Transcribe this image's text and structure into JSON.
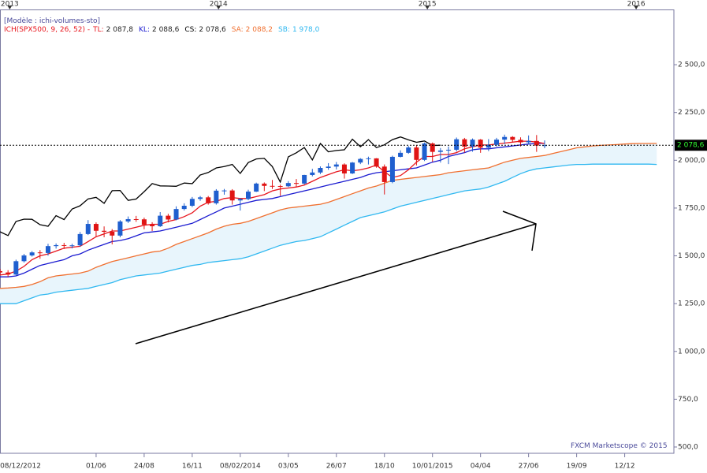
{
  "chart_data": {
    "type": "candlestick",
    "model": "[Modèle : ichi-volumes-sto]",
    "indicator": "ICH(SPX500, 9, 26, 52) -",
    "credit": "FXCM Marketscope © 2015",
    "xlim": [
      "2012-12-15",
      "2016-03-07"
    ],
    "ylim": [
      467,
      2789
    ],
    "xticks_top": [
      {
        "value": "2013-01-01",
        "label": "2013"
      },
      {
        "value": "2014-01-01",
        "label": "2014"
      },
      {
        "value": "2015-01-01",
        "label": "2015"
      },
      {
        "value": "2016-01-01",
        "label": "2016"
      }
    ],
    "xticks": [
      {
        "value": "2012-12-08",
        "label": "08/12/2012"
      },
      {
        "value": "2013-06-01",
        "label": "01/06"
      },
      {
        "value": "2013-08-24",
        "label": "24/08"
      },
      {
        "value": "2013-11-16",
        "label": "16/11"
      },
      {
        "value": "2014-02-08",
        "label": "08/02/2014"
      },
      {
        "value": "2014-05-03",
        "label": "03/05"
      },
      {
        "value": "2014-07-26",
        "label": "26/07"
      },
      {
        "value": "2014-10-18",
        "label": "18/10"
      },
      {
        "value": "2015-01-10",
        "label": "10/01/2015"
      },
      {
        "value": "2015-04-04",
        "label": "04/04"
      },
      {
        "value": "2015-06-27",
        "label": "27/06"
      },
      {
        "value": "2015-09-19",
        "label": "19/09"
      },
      {
        "value": "2015-12-12",
        "label": "12/12"
      }
    ],
    "yticks": [
      {
        "value": 500,
        "label": "500,0"
      },
      {
        "value": 750,
        "label": "750,0"
      },
      {
        "value": 1000,
        "label": "1 000,0"
      },
      {
        "value": 1250,
        "label": "1 250,0"
      },
      {
        "value": 1500,
        "label": "1 500,0"
      },
      {
        "value": 1750,
        "label": "1 750,0"
      },
      {
        "value": 2000,
        "label": "2 000,0"
      },
      {
        "value": 2250,
        "label": "2 250,0"
      },
      {
        "value": 2500,
        "label": "2 500,0"
      }
    ],
    "last_price": {
      "value": 2078.6,
      "label": "2 078,6"
    },
    "x": [
      "2012-12-15",
      "2012-12-29",
      "2013-01-12",
      "2013-01-26",
      "2013-02-09",
      "2013-02-23",
      "2013-03-09",
      "2013-03-23",
      "2013-04-06",
      "2013-04-20",
      "2013-05-04",
      "2013-05-18",
      "2013-06-01",
      "2013-06-15",
      "2013-06-29",
      "2013-07-13",
      "2013-07-27",
      "2013-08-10",
      "2013-08-24",
      "2013-09-07",
      "2013-09-21",
      "2013-10-05",
      "2013-10-19",
      "2013-11-02",
      "2013-11-16",
      "2013-11-30",
      "2013-12-14",
      "2013-12-28",
      "2014-01-11",
      "2014-01-25",
      "2014-02-08",
      "2014-02-22",
      "2014-03-08",
      "2014-03-22",
      "2014-04-05",
      "2014-04-19",
      "2014-05-03",
      "2014-05-17",
      "2014-05-31",
      "2014-06-14",
      "2014-06-28",
      "2014-07-12",
      "2014-07-26",
      "2014-08-09",
      "2014-08-23",
      "2014-09-06",
      "2014-09-20",
      "2014-10-04",
      "2014-10-18",
      "2014-11-01",
      "2014-11-15",
      "2014-11-29",
      "2014-12-13",
      "2014-12-27",
      "2015-01-10",
      "2015-01-24",
      "2015-02-07",
      "2015-02-21",
      "2015-03-07",
      "2015-03-21",
      "2015-04-04",
      "2015-04-18",
      "2015-05-02",
      "2015-05-16",
      "2015-05-30",
      "2015-06-13",
      "2015-06-27",
      "2015-07-11",
      "2015-07-25",
      "2015-08-08",
      "2015-08-22",
      "2015-09-05",
      "2015-09-19",
      "2015-10-03",
      "2015-10-17",
      "2015-10-31",
      "2015-11-14",
      "2015-11-28",
      "2015-12-12",
      "2015-12-26",
      "2016-01-09",
      "2016-01-23",
      "2016-02-06"
    ],
    "candles": {
      "up_color": "#1f5fcf",
      "down_color": "#e01414",
      "open": [
        1420,
        1413,
        1402,
        1472,
        1502,
        1518,
        1515,
        1551,
        1556,
        1553,
        1555,
        1614,
        1667,
        1631,
        1626,
        1606,
        1680,
        1692,
        1691,
        1663,
        1655,
        1710,
        1690,
        1745,
        1762,
        1798,
        1806,
        1775,
        1841,
        1842,
        1790,
        1797,
        1836,
        1878,
        1866,
        1865,
        1864,
        1881,
        1878,
        1923,
        1936,
        1960,
        1967,
        1978,
        1931,
        1988,
        2007,
        2010,
        1967,
        1886,
        2018,
        2039,
        2067,
        2002,
        2088,
        2044,
        2051,
        2055,
        2110,
        2071,
        2108,
        2066,
        2081,
        2108,
        2122,
        2107,
        2094,
        2101,
        2077,
        null,
        null,
        null,
        null,
        null,
        null,
        null,
        null,
        null,
        null,
        null,
        null,
        null,
        null
      ],
      "high": [
        1432,
        1425,
        1480,
        1510,
        1525,
        1530,
        1563,
        1565,
        1568,
        1563,
        1625,
        1687,
        1675,
        1654,
        1640,
        1687,
        1706,
        1709,
        1700,
        1676,
        1729,
        1720,
        1759,
        1775,
        1808,
        1813,
        1813,
        1849,
        1850,
        1849,
        1803,
        1846,
        1883,
        1884,
        1897,
        1873,
        1891,
        1902,
        1924,
        1955,
        1968,
        1985,
        1991,
        1984,
        1991,
        2011,
        2019,
        2011,
        1978,
        2024,
        2052,
        2075,
        2079,
        2093,
        2093,
        2064,
        2072,
        2119,
        2117,
        2114,
        2111,
        2111,
        2117,
        2134,
        2126,
        2120,
        2130,
        2132,
        2104,
        null,
        null,
        null,
        null,
        null,
        null,
        null,
        null,
        null,
        null,
        null,
        null,
        null,
        null
      ],
      "low": [
        1398,
        1390,
        1398,
        1465,
        1496,
        1485,
        1501,
        1538,
        1536,
        1539,
        1547,
        1609,
        1598,
        1597,
        1560,
        1597,
        1672,
        1678,
        1639,
        1630,
        1651,
        1675,
        1686,
        1737,
        1755,
        1788,
        1768,
        1768,
        1820,
        1768,
        1737,
        1791,
        1834,
        1839,
        1850,
        1814,
        1860,
        1862,
        1873,
        1916,
        1928,
        1950,
        1952,
        1904,
        1928,
        1980,
        1978,
        1961,
        1821,
        1880,
        2015,
        2034,
        1973,
        1996,
        1992,
        1988,
        1980,
        2046,
        2040,
        2045,
        2039,
        2048,
        2072,
        2085,
        2093,
        2072,
        2083,
        2044,
        2063,
        null,
        null,
        null,
        null,
        null,
        null,
        null,
        null,
        null,
        null,
        null,
        null,
        null,
        null
      ],
      "close": [
        1413,
        1402,
        1472,
        1502,
        1518,
        1515,
        1551,
        1556,
        1553,
        1555,
        1614,
        1667,
        1631,
        1626,
        1606,
        1680,
        1692,
        1691,
        1663,
        1655,
        1710,
        1690,
        1745,
        1762,
        1798,
        1806,
        1775,
        1841,
        1842,
        1790,
        1797,
        1836,
        1878,
        1866,
        1865,
        1864,
        1881,
        1878,
        1923,
        1936,
        1960,
        1967,
        1978,
        1931,
        1988,
        2007,
        2010,
        1967,
        1886,
        2018,
        2039,
        2067,
        2002,
        2088,
        2044,
        2051,
        2055,
        2110,
        2071,
        2108,
        2066,
        2081,
        2108,
        2122,
        2107,
        2094,
        2101,
        2077,
        2078.6,
        null,
        null,
        null,
        null,
        null,
        null,
        null,
        null,
        null,
        null,
        null,
        null,
        null,
        null
      ]
    },
    "series": [
      {
        "name": "TL:",
        "legend_value": "2 087,8",
        "color": "#e8141c",
        "values": [
          1400,
          1405,
          1420,
          1445,
          1480,
          1500,
          1510,
          1525,
          1540,
          1545,
          1550,
          1575,
          1600,
          1615,
          1630,
          1630,
          1640,
          1650,
          1660,
          1665,
          1665,
          1680,
          1690,
          1705,
          1725,
          1760,
          1780,
          1785,
          1800,
          1805,
          1800,
          1800,
          1810,
          1820,
          1840,
          1850,
          1855,
          1860,
          1870,
          1890,
          1910,
          1925,
          1940,
          1950,
          1945,
          1950,
          1960,
          1975,
          1940,
          1910,
          1920,
          1950,
          1990,
          2020,
          2020,
          2030,
          2030,
          2040,
          2060,
          2070,
          2080,
          2080,
          2085,
          2090,
          2095,
          2100,
          2100,
          2095,
          2087.8,
          null,
          null,
          null,
          null,
          null,
          null,
          null,
          null,
          null,
          null,
          null,
          null,
          null,
          null
        ]
      },
      {
        "name": "KL:",
        "legend_value": "2 088,6",
        "color": "#1a1ad0",
        "values": [
          1390,
          1390,
          1395,
          1410,
          1430,
          1450,
          1460,
          1470,
          1480,
          1500,
          1510,
          1530,
          1545,
          1560,
          1575,
          1580,
          1590,
          1605,
          1620,
          1625,
          1630,
          1640,
          1650,
          1660,
          1670,
          1690,
          1710,
          1730,
          1750,
          1760,
          1770,
          1780,
          1790,
          1795,
          1800,
          1810,
          1820,
          1830,
          1840,
          1850,
          1860,
          1870,
          1880,
          1890,
          1900,
          1910,
          1925,
          1935,
          1940,
          1945,
          1950,
          1955,
          1960,
          1975,
          1990,
          2000,
          2020,
          2030,
          2040,
          2055,
          2060,
          2060,
          2065,
          2070,
          2075,
          2080,
          2085,
          2088,
          2088.6,
          null,
          null,
          null,
          null,
          null,
          null,
          null,
          null,
          null,
          null,
          null,
          null,
          null,
          null
        ]
      },
      {
        "name": "CS:",
        "legend_value": "2 078,6",
        "color": "#000000",
        "values": [
          1626,
          1606,
          1680,
          1692,
          1691,
          1663,
          1655,
          1710,
          1690,
          1745,
          1762,
          1798,
          1806,
          1775,
          1841,
          1842,
          1790,
          1797,
          1836,
          1878,
          1866,
          1865,
          1864,
          1881,
          1878,
          1923,
          1936,
          1960,
          1967,
          1978,
          1931,
          1988,
          2007,
          2010,
          1967,
          1886,
          2018,
          2039,
          2067,
          2002,
          2088,
          2044,
          2051,
          2055,
          2110,
          2071,
          2108,
          2066,
          2081,
          2108,
          2122,
          2107,
          2094,
          2101,
          2077,
          2078.6,
          null,
          null,
          null,
          null,
          null,
          null,
          null,
          null,
          null,
          null,
          null,
          null,
          null,
          null,
          null,
          null,
          null,
          null,
          null,
          null,
          null,
          null,
          null,
          null,
          null,
          null,
          null
        ]
      },
      {
        "name": "SA:",
        "legend_value": "2 088,2",
        "color": "#f07030",
        "values": [
          1330,
          1332,
          1335,
          1340,
          1350,
          1365,
          1385,
          1395,
          1400,
          1405,
          1410,
          1420,
          1440,
          1455,
          1470,
          1480,
          1490,
          1500,
          1510,
          1520,
          1525,
          1540,
          1560,
          1575,
          1590,
          1605,
          1620,
          1640,
          1655,
          1665,
          1670,
          1680,
          1695,
          1710,
          1725,
          1740,
          1750,
          1755,
          1760,
          1765,
          1770,
          1780,
          1795,
          1810,
          1825,
          1840,
          1855,
          1865,
          1880,
          1895,
          1900,
          1905,
          1910,
          1915,
          1920,
          1925,
          1935,
          1940,
          1945,
          1950,
          1955,
          1960,
          1975,
          1990,
          2000,
          2010,
          2015,
          2020,
          2025,
          2035,
          2045,
          2055,
          2065,
          2070,
          2075,
          2078,
          2080,
          2082,
          2085,
          2087,
          2088,
          2088,
          2088.2
        ]
      },
      {
        "name": "SB:",
        "legend_value": "1 978,0",
        "color": "#30b8f0",
        "values": [
          1250,
          1250,
          1250,
          1265,
          1280,
          1295,
          1300,
          1310,
          1315,
          1320,
          1325,
          1330,
          1340,
          1350,
          1360,
          1375,
          1385,
          1395,
          1400,
          1405,
          1410,
          1420,
          1430,
          1440,
          1450,
          1455,
          1465,
          1470,
          1475,
          1480,
          1485,
          1495,
          1510,
          1525,
          1540,
          1555,
          1565,
          1575,
          1580,
          1590,
          1600,
          1620,
          1640,
          1660,
          1680,
          1700,
          1710,
          1720,
          1730,
          1745,
          1760,
          1770,
          1780,
          1790,
          1800,
          1810,
          1820,
          1830,
          1840,
          1845,
          1850,
          1860,
          1875,
          1890,
          1910,
          1930,
          1945,
          1955,
          1960,
          1965,
          1970,
          1975,
          1978,
          1978,
          1980,
          1980,
          1980,
          1980,
          1980,
          1980,
          1980,
          1980,
          1978
        ]
      }
    ],
    "cloud_color": "#e8f5fc"
  }
}
